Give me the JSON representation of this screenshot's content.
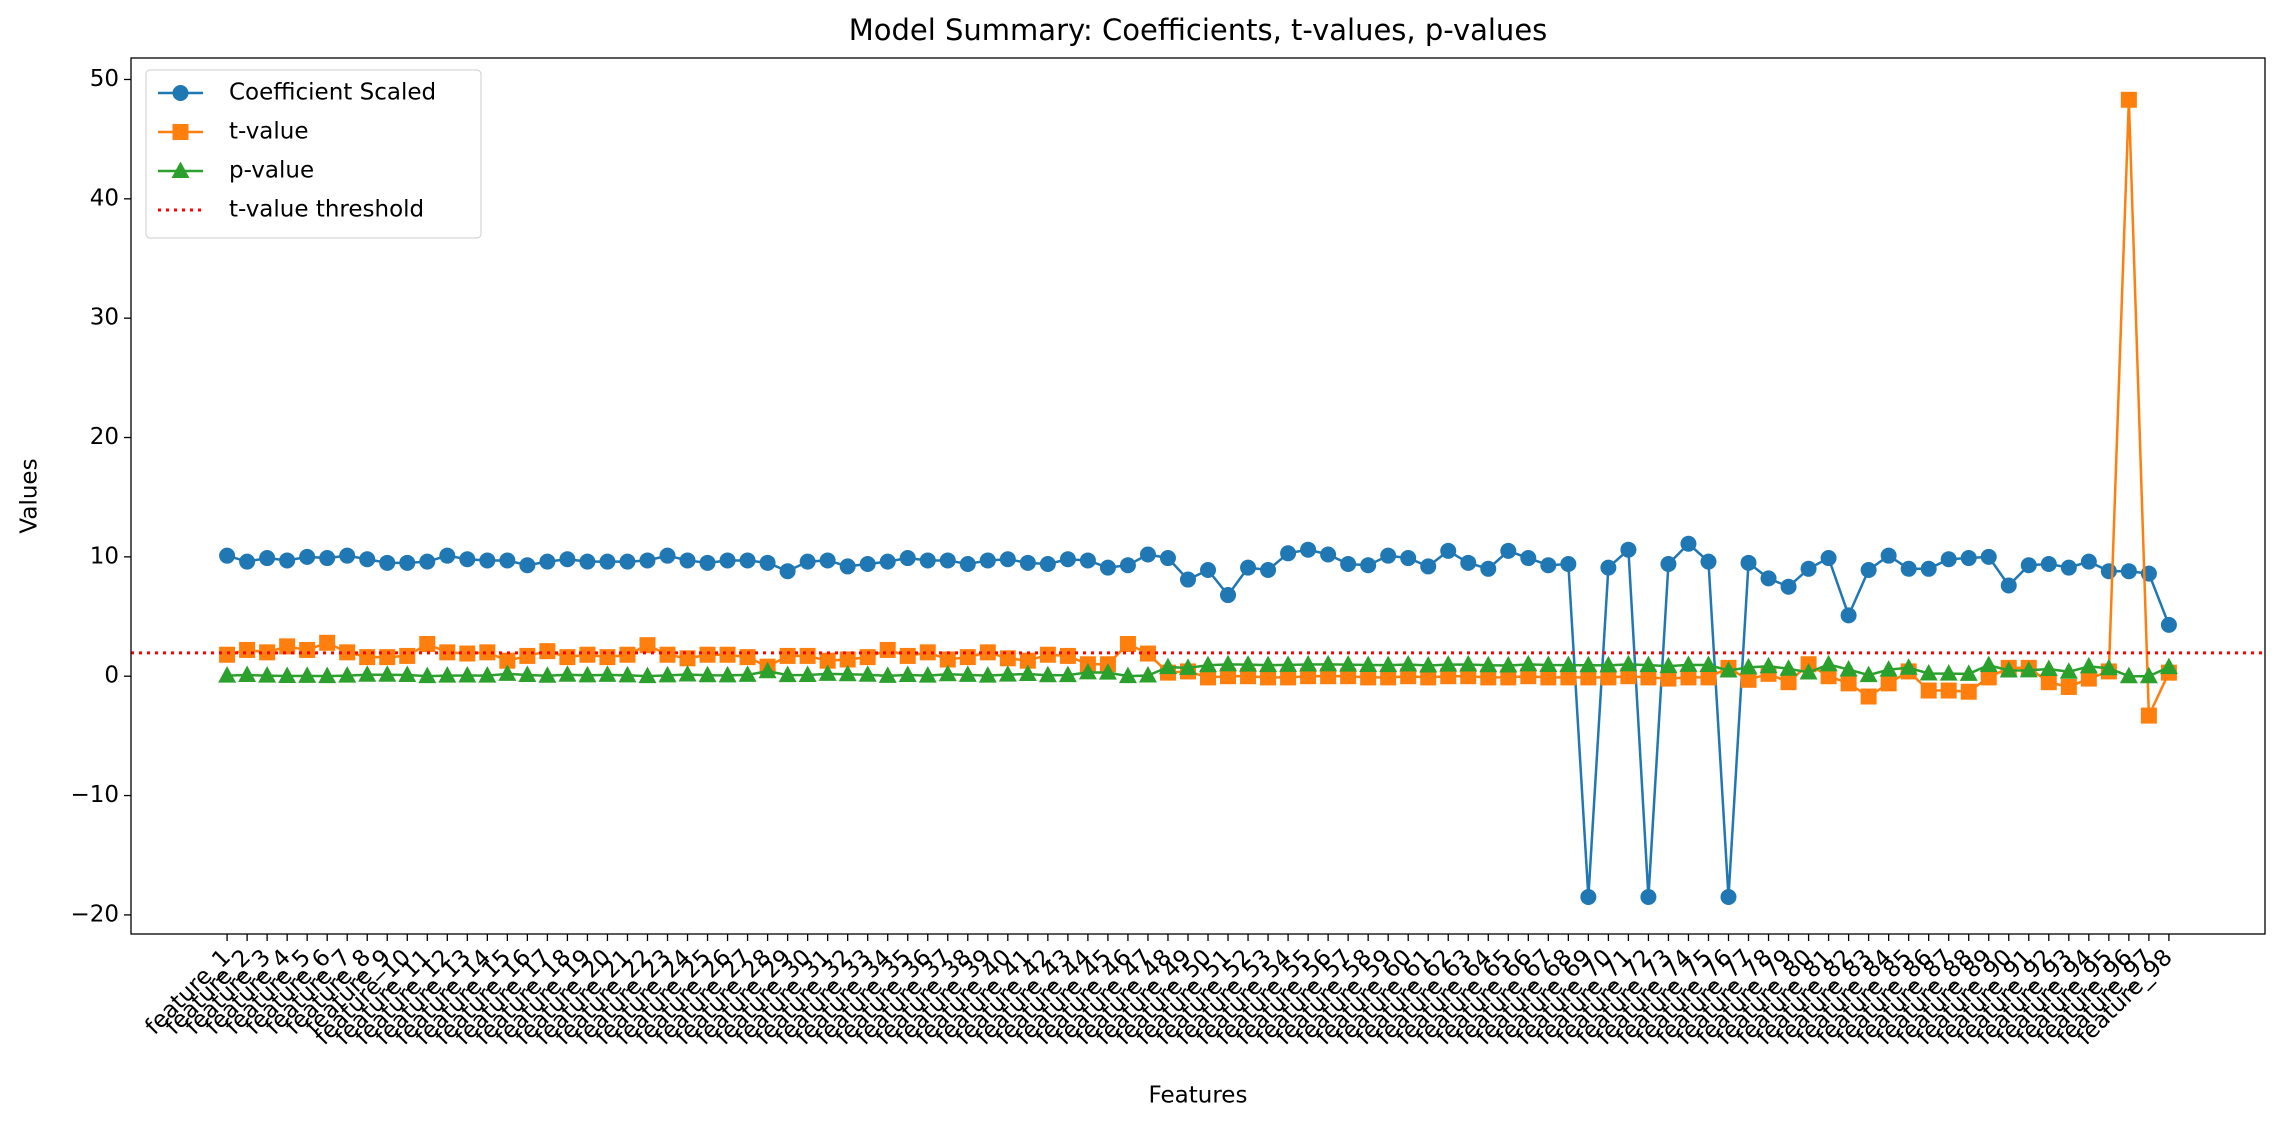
{
  "chart_data": {
    "type": "line",
    "title": "Model Summary: Coefficients, t-values, p-values",
    "x_label": "Features",
    "y_label": "Values",
    "categories": [
      "feature_1",
      "feature_2",
      "feature_3",
      "feature_4",
      "feature_5",
      "feature_6",
      "feature_7",
      "feature_8",
      "feature_9",
      "feature_10",
      "feature_11",
      "feature_12",
      "feature_13",
      "feature_14",
      "feature_15",
      "feature_16",
      "feature_17",
      "feature_18",
      "feature_19",
      "feature_20",
      "feature_21",
      "feature_22",
      "feature_23",
      "feature_24",
      "feature_25",
      "feature_26",
      "feature_27",
      "feature_28",
      "feature_29",
      "feature_30",
      "feature_31",
      "feature_32",
      "feature_33",
      "feature_34",
      "feature_35",
      "feature_36",
      "feature_37",
      "feature_38",
      "feature_39",
      "feature_40",
      "feature_41",
      "feature_42",
      "feature_43",
      "feature_44",
      "feature_45",
      "feature_46",
      "feature_47",
      "feature_48",
      "feature_49",
      "feature_50",
      "feature_51",
      "feature_52",
      "feature_53",
      "feature_54",
      "feature_55",
      "feature_56",
      "feature_57",
      "feature_58",
      "feature_59",
      "feature_60",
      "feature_61",
      "feature_62",
      "feature_63",
      "feature_64",
      "feature_65",
      "feature_66",
      "feature_67",
      "feature_68",
      "feature_69",
      "feature_70",
      "feature_71",
      "feature_72",
      "feature_73",
      "feature_74",
      "feature_75",
      "feature_76",
      "feature_77",
      "feature_78",
      "feature_79",
      "feature_80",
      "feature_81",
      "feature_82",
      "feature_83",
      "feature_84",
      "feature_85",
      "feature_86",
      "feature_87",
      "feature_88",
      "feature_89",
      "feature_90",
      "feature_91",
      "feature_92",
      "feature_93",
      "feature_94",
      "feature_95",
      "feature_96",
      "feature_97",
      "feature_98"
    ],
    "series": [
      {
        "name": "Coefficient Scaled",
        "color": "#1f77b4",
        "marker": "circle",
        "values": [
          10.1,
          9.6,
          9.9,
          9.7,
          10,
          9.9,
          10.1,
          9.8,
          9.5,
          9.5,
          9.6,
          10.1,
          9.8,
          9.7,
          9.7,
          9.3,
          9.6,
          9.8,
          9.6,
          9.6,
          9.6,
          9.7,
          10.1,
          9.7,
          9.5,
          9.7,
          9.7,
          9.5,
          8.8,
          9.6,
          9.7,
          9.2,
          9.4,
          9.6,
          9.9,
          9.7,
          9.7,
          9.4,
          9.7,
          9.8,
          9.5,
          9.4,
          9.8,
          9.7,
          9.1,
          9.3,
          10.2,
          9.9,
          8.1,
          8.9,
          6.8,
          9.1,
          8.9,
          10.3,
          10.6,
          10.2,
          9.4,
          9.3,
          10.1,
          9.9,
          9.2,
          10.5,
          9.5,
          9.0,
          10.5,
          9.9,
          9.3,
          9.4,
          -18.5,
          9.1,
          10.6,
          -18.5,
          9.4,
          11.1,
          9.6,
          -18.5,
          9.5,
          8.2,
          7.5,
          9.0,
          9.9,
          5.1,
          8.9,
          10.1,
          9.0,
          9.0,
          9.8,
          9.9,
          10.0,
          7.6,
          9.3,
          9.4,
          9.1,
          9.6,
          8.8,
          8.8,
          8.6,
          4.3
        ]
      },
      {
        "name": "t-value",
        "color": "#ff7f0e",
        "marker": "square",
        "values": [
          1.8,
          2.2,
          2.0,
          2.5,
          2.2,
          2.8,
          2.0,
          1.6,
          1.6,
          1.7,
          2.7,
          2.0,
          1.9,
          2.0,
          1.3,
          1.7,
          2.1,
          1.6,
          1.8,
          1.6,
          1.8,
          2.6,
          1.8,
          1.5,
          1.8,
          1.8,
          1.6,
          0.8,
          1.7,
          1.7,
          1.3,
          1.4,
          1.6,
          2.2,
          1.7,
          2.0,
          1.4,
          1.6,
          2.0,
          1.5,
          1.3,
          1.8,
          1.7,
          1.0,
          1.0,
          2.7,
          1.9,
          0.3,
          0.4,
          -0.1,
          0.0,
          0.0,
          -0.1,
          -0.1,
          0.0,
          0.0,
          0.0,
          -0.1,
          -0.1,
          0.0,
          -0.1,
          0.0,
          0.0,
          -0.1,
          -0.1,
          0.0,
          -0.1,
          -0.1,
          -0.1,
          -0.1,
          0.0,
          -0.1,
          -0.2,
          -0.1,
          -0.1,
          0.7,
          -0.3,
          0.2,
          -0.5,
          1.0,
          0.0,
          -0.6,
          -1.7,
          -0.6,
          0.4,
          -1.2,
          -1.2,
          -1.3,
          -0.1,
          0.7,
          0.7,
          -0.5,
          -0.9,
          -0.2,
          0.4,
          48.3,
          -3.3,
          0.3
        ]
      },
      {
        "name": "p-value",
        "color": "#2ca02c",
        "marker": "triangle",
        "values": [
          0.05,
          0.1,
          0.05,
          0.02,
          0.03,
          0.01,
          0.05,
          0.12,
          0.12,
          0.1,
          0.01,
          0.05,
          0.06,
          0.05,
          0.2,
          0.1,
          0.04,
          0.12,
          0.07,
          0.11,
          0.07,
          0.01,
          0.07,
          0.14,
          0.08,
          0.07,
          0.11,
          0.42,
          0.09,
          0.1,
          0.2,
          0.16,
          0.12,
          0.03,
          0.1,
          0.05,
          0.16,
          0.11,
          0.05,
          0.13,
          0.19,
          0.08,
          0.09,
          0.32,
          0.3,
          0.01,
          0.06,
          0.76,
          0.7,
          0.92,
          0.99,
          0.97,
          0.93,
          0.95,
          0.98,
          0.99,
          0.97,
          0.94,
          0.93,
          0.98,
          0.9,
          0.97,
          0.98,
          0.92,
          0.9,
          0.99,
          0.94,
          0.93,
          0.92,
          0.91,
          0.99,
          0.93,
          0.85,
          0.95,
          0.94,
          0.48,
          0.74,
          0.83,
          0.63,
          0.31,
          0.99,
          0.56,
          0.09,
          0.55,
          0.71,
          0.23,
          0.22,
          0.2,
          0.93,
          0.48,
          0.49,
          0.6,
          0.37,
          0.82,
          0.67,
          0.0,
          0.0,
          0.76
        ]
      }
    ],
    "threshold": {
      "name": "t-value threshold",
      "value": 1.96,
      "color": "#ff0000"
    },
    "ylim": [
      -21.6,
      51.8
    ],
    "yticks": [
      {
        "value": -20,
        "label": "−20"
      },
      {
        "value": -10,
        "label": "−10"
      },
      0,
      10,
      20,
      30,
      40,
      50
    ],
    "legend": "upper left",
    "grid": false
  }
}
